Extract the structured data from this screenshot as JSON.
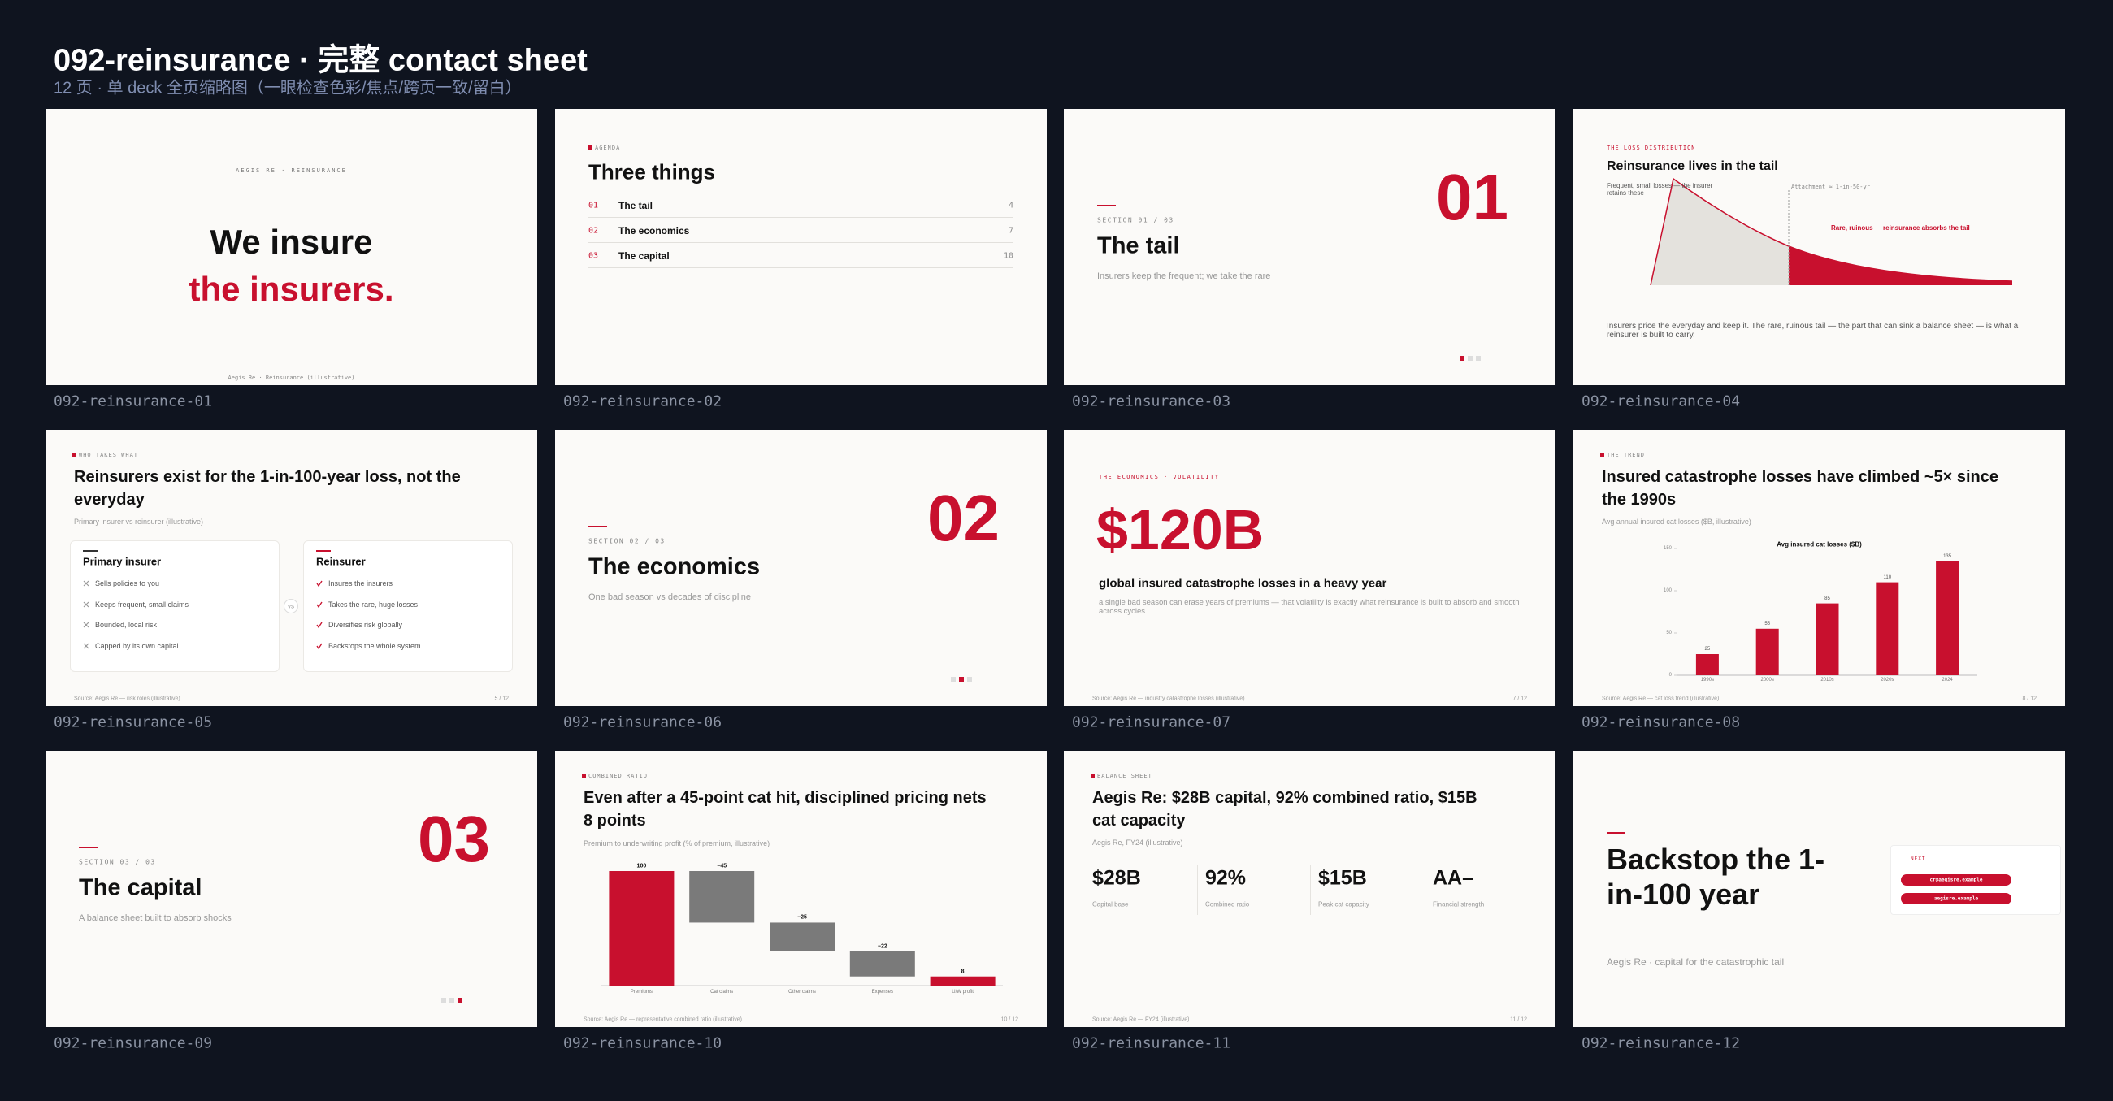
{
  "header": {
    "title": "092-reinsurance · 完整 contact sheet",
    "subtitle": "12 页 · 单 deck 全页缩略图（一眼检查色彩/焦点/跨页一致/留白）"
  },
  "slides": [
    {
      "label": "092-reinsurance-01",
      "kicker": "AEGIS RE · REINSURANCE",
      "title_line1": "We insure",
      "title_line2": "the insurers.",
      "footer": "Aegis Re · Reinsurance (illustrative)"
    },
    {
      "label": "092-reinsurance-02",
      "kicker": "AGENDA",
      "title": "Three things",
      "items": [
        {
          "num": "01",
          "text": "The tail",
          "page": "4"
        },
        {
          "num": "02",
          "text": "The economics",
          "page": "7"
        },
        {
          "num": "03",
          "text": "The capital",
          "page": "10"
        }
      ]
    },
    {
      "label": "092-reinsurance-03",
      "section": "SECTION 01 / 03",
      "title": "The tail",
      "subtitle": "Insurers keep the frequent; we take the rare",
      "number": "01"
    },
    {
      "label": "092-reinsurance-04",
      "kicker": "THE LOSS DISTRIBUTION",
      "title": "Reinsurance lives in the tail",
      "note_left": "Frequent, small losses — the insurer retains these",
      "note_attachment": "Attachment ≈ 1-in-50-yr",
      "note_right": "Rare, ruinous — reinsurance absorbs the tail",
      "body": "Insurers price the everyday and keep it. The rare, ruinous tail — the part that can sink a balance sheet — is what a reinsurer is built to carry."
    },
    {
      "label": "092-reinsurance-05",
      "kicker": "WHO TAKES WHAT",
      "title": "Reinsurers exist for the 1-in-100-year loss, not the everyday",
      "subtitle": "Primary insurer vs reinsurer (illustrative)",
      "cards": [
        {
          "title": "Primary insurer",
          "items": [
            "Sells policies to you",
            "Keeps frequent, small claims",
            "Bounded, local risk",
            "Capped by its own capital"
          ]
        },
        {
          "title": "Reinsurer",
          "items": [
            "Insures the insurers",
            "Takes the rare, huge losses",
            "Diversifies risk globally",
            "Backstops the whole system"
          ]
        }
      ],
      "versus": "vs",
      "footer": "Source: Aegis Re — risk roles (illustrative)",
      "page": "5 / 12"
    },
    {
      "label": "092-reinsurance-06",
      "section": "SECTION 02 / 03",
      "title": "The economics",
      "subtitle": "One bad season vs decades of discipline",
      "number": "02"
    },
    {
      "label": "092-reinsurance-07",
      "kicker": "THE ECONOMICS · VOLATILITY",
      "stat": "$120B",
      "headline": "global insured catastrophe losses in a heavy year",
      "body": "a single bad season can erase years of premiums — that volatility is exactly what reinsurance is built to absorb and smooth across cycles",
      "footer": "Source: Aegis Re — industry catastrophe losses (illustrative)",
      "page": "7 / 12"
    },
    {
      "label": "092-reinsurance-08",
      "kicker": "THE TREND",
      "title": "Insured catastrophe losses have climbed ~5× since the 1990s",
      "subtitle": "Avg annual insured cat losses ($B, illustrative)",
      "chart": {
        "type": "bar",
        "title": "Avg insured cat losses ($B)",
        "categories": [
          "1990s",
          "2000s",
          "2010s",
          "2020s",
          "2024"
        ],
        "values": [
          25,
          55,
          85,
          110,
          135
        ],
        "color": "#c8102e",
        "ylim": [
          0,
          150
        ],
        "yticks": [
          0,
          50,
          100,
          150
        ]
      },
      "footer": "Source: Aegis Re — cat loss trend (illustrative)",
      "page": "8 / 12"
    },
    {
      "label": "092-reinsurance-09",
      "section": "SECTION 03 / 03",
      "title": "The capital",
      "subtitle": "A balance sheet built to absorb shocks",
      "number": "03"
    },
    {
      "label": "092-reinsurance-10",
      "kicker": "COMBINED RATIO",
      "title": "Even after a 45-point cat hit, disciplined pricing nets 8 points",
      "subtitle": "Premium to underwriting profit (% of premium, illustrative)",
      "chart": {
        "type": "waterfall",
        "categories": [
          "Premiums",
          "Cat claims",
          "Other claims",
          "Expenses",
          "U/W profit"
        ],
        "values": [
          100,
          -45,
          -25,
          -22,
          8
        ],
        "value_labels": [
          "100",
          "−45",
          "−25",
          "−22",
          "8"
        ],
        "color": "#c8102e",
        "step_color": "#7a7a7a"
      },
      "footer": "Source: Aegis Re — representative combined ratio (illustrative)",
      "page": "10 / 12"
    },
    {
      "label": "092-reinsurance-11",
      "kicker": "BALANCE SHEET",
      "title": "Aegis Re: $28B capital, 92% combined ratio, $15B cat capacity",
      "subtitle": "Aegis Re, FY24 (illustrative)",
      "stats": [
        {
          "value": "$28B",
          "label": "Capital base"
        },
        {
          "value": "92%",
          "label": "Combined ratio"
        },
        {
          "value": "$15B",
          "label": "Peak cat capacity"
        },
        {
          "value": "AA–",
          "label": "Financial strength"
        }
      ],
      "footer": "Source: Aegis Re — FY24 (illustrative)",
      "page": "11 / 12"
    },
    {
      "label": "092-reinsurance-12",
      "title": "Backstop the 1-in-100 year",
      "subtitle": "Aegis Re · capital for the catastrophic tail",
      "next_label": "NEXT",
      "buttons": [
        "cr@aegisre.example",
        "aegisre.example"
      ]
    }
  ]
}
